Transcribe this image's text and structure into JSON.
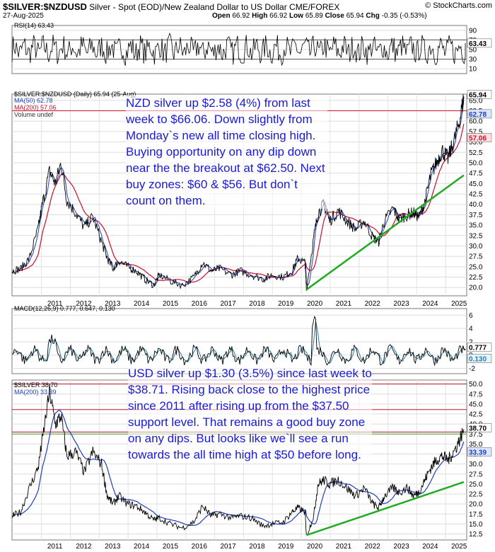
{
  "header": {
    "symbol": "$SILVER:$NZDUSD",
    "description": "Silver - Spot (EOD)/New Zealand Dollar to US Dollar CME/FOREX",
    "date": "27-Aug-2025",
    "ohlc": "Open 66.92  High 66.92  Low 65.89  Close 65.94  Chg -0.35 (-0.53%)",
    "open_label": "Open",
    "open": "66.92",
    "high_label": "High",
    "high": "66.92",
    "low_label": "Low",
    "low": "65.89",
    "close_label": "Close",
    "close": "65.94",
    "chg_label": "Chg",
    "chg": "-0.35 (-0.53%)",
    "credit": "© StockCharts.com"
  },
  "annotations": {
    "nzd": "NZD silver up $2.58 (4%) from last week to $66.06. Down slightly from Monday`s new all time closing high. Buying opportunity on any dip down near the the breakout at $62.50. Next buy zones: $60 & $56. But don`t count on them.",
    "usd": "USD silver up $1.30 (3.5%) since last week to $38.71. Rising back close to the highest price since 2011 after rising up from the $37.50 support level. That remains a good buy zone on any dips. But looks like we`ll see a run towards the all time high at $50 before long."
  },
  "chart_data": [
    {
      "type": "line",
      "panel": "RSI",
      "title": "RSI(14) 63.43",
      "current": 63.43,
      "yticks": [
        90,
        70,
        50,
        30,
        10
      ],
      "ylim": [
        0,
        100
      ],
      "reference_lines": [
        70,
        30
      ]
    },
    {
      "type": "line",
      "panel": "price-nzd",
      "title": "$SILVER:$NZDUSD (Daily) 65.94 (25-Aug)",
      "legend": [
        "MA(50) 62.78",
        "MA(200) 57.06",
        "Volume undef"
      ],
      "colors": {
        "price": "#000000",
        "ma50": "#1f3fbf",
        "ma200": "#c8102e",
        "trend": "#22aa22"
      },
      "x": [
        2010.0,
        2010.3,
        2010.6,
        2010.9,
        2011.05,
        2011.3,
        2011.5,
        2011.7,
        2011.9,
        2012.2,
        2012.5,
        2012.8,
        2013.1,
        2013.3,
        2013.5,
        2013.7,
        2014.0,
        2014.3,
        2014.6,
        2014.9,
        2015.1,
        2015.5,
        2015.9,
        2016.3,
        2016.6,
        2016.9,
        2017.2,
        2017.6,
        2017.9,
        2018.3,
        2018.7,
        2019.0,
        2019.4,
        2019.7,
        2019.9,
        2020.15,
        2020.2,
        2020.45,
        2020.6,
        2020.8,
        2021.0,
        2021.3,
        2021.6,
        2021.9,
        2022.2,
        2022.5,
        2022.7,
        2022.9,
        2023.2,
        2023.4,
        2023.7,
        2023.9,
        2024.1,
        2024.3,
        2024.5,
        2024.7,
        2024.9,
        2025.1,
        2025.3,
        2025.5,
        2025.65
      ],
      "values": [
        24,
        24.5,
        27,
        34,
        40,
        48,
        45,
        50,
        41,
        38,
        34.5,
        37,
        31,
        27,
        24.5,
        26.5,
        25,
        24,
        22,
        20.5,
        23,
        21.5,
        20.5,
        22.5,
        26,
        24,
        24.5,
        23,
        24,
        23,
        22,
        23,
        22.5,
        24,
        27,
        26,
        19.5,
        32,
        38,
        40,
        36,
        38.5,
        36,
        34,
        36,
        32,
        31,
        36,
        39,
        36.5,
        37.5,
        38,
        37,
        40.5,
        47,
        50,
        53,
        51,
        55,
        60,
        65.94
      ],
      "trendline": {
        "from": [
          2020.2,
          19.5
        ],
        "to": [
          2025.65,
          47
        ]
      },
      "horizontal_lines": [
        62.5
      ],
      "yticks": [
        65.0,
        62.5,
        60.0,
        57.5,
        55.0,
        52.5,
        50.0,
        47.5,
        45.0,
        42.5,
        40.0,
        37.5,
        35.0,
        32.5,
        30.0,
        27.5,
        25.0,
        22.5,
        20.0
      ],
      "right_tags": [
        {
          "text": "65.94",
          "value": 65.94
        },
        {
          "text": "62.78",
          "value": 62.78
        },
        {
          "text": "57.06",
          "value": 57.06
        }
      ],
      "ylim": [
        18,
        66.5
      ],
      "xticks": [
        "2011",
        "2012",
        "2013",
        "2014",
        "2015",
        "2016",
        "2017",
        "2018",
        "2019",
        "2020",
        "2021",
        "2022",
        "2023",
        "2024",
        "2025"
      ]
    },
    {
      "type": "line",
      "panel": "MACD",
      "title": "MACD(12,26,9) 0.777, 0.647, 0.130",
      "macd": 0.777,
      "signal": 0.647,
      "histogram": 0.13,
      "yticks": [
        6,
        4,
        2,
        0,
        -2
      ],
      "right_tags": [
        {
          "text": "0.777",
          "value": 0.777
        },
        {
          "text": "0.130",
          "value": 0.13
        }
      ],
      "ylim": [
        -2.8,
        7
      ]
    },
    {
      "type": "line",
      "panel": "price-usd",
      "title": "$SILVER 38.70",
      "legend": [
        "$SILVER 38.70",
        "MA(200) 33.39"
      ],
      "colors": {
        "price": "#000000",
        "ma200": "#1f3fbf",
        "trend": "#22aa22",
        "green_line": "#22aa22",
        "red_lines": "#c8102e"
      },
      "x": [
        2010.0,
        2010.3,
        2010.6,
        2010.9,
        2011.05,
        2011.3,
        2011.5,
        2011.7,
        2011.9,
        2012.2,
        2012.5,
        2012.8,
        2013.1,
        2013.3,
        2013.5,
        2013.7,
        2014.0,
        2014.3,
        2014.6,
        2014.9,
        2015.1,
        2015.5,
        2015.9,
        2016.3,
        2016.6,
        2016.9,
        2017.2,
        2017.6,
        2017.9,
        2018.3,
        2018.7,
        2019.0,
        2019.4,
        2019.7,
        2019.9,
        2020.15,
        2020.2,
        2020.45,
        2020.6,
        2020.8,
        2021.0,
        2021.3,
        2021.6,
        2021.9,
        2022.2,
        2022.5,
        2022.7,
        2022.9,
        2023.2,
        2023.4,
        2023.7,
        2023.9,
        2024.1,
        2024.3,
        2024.5,
        2024.7,
        2024.9,
        2025.1,
        2025.3,
        2025.5,
        2025.65
      ],
      "values": [
        17,
        18,
        24,
        29,
        36,
        48,
        40,
        42,
        32,
        33,
        28,
        33,
        30,
        22,
        20,
        22,
        20,
        19.5,
        18,
        16,
        16.5,
        15,
        14,
        15.5,
        19.5,
        17,
        17.5,
        16.5,
        17,
        16.5,
        14.5,
        15,
        15.5,
        18,
        19,
        18,
        12,
        17,
        25,
        26,
        25,
        26,
        24,
        22,
        24,
        20,
        19,
        22,
        24,
        23,
        24,
        22,
        23,
        26,
        29,
        31,
        32,
        31,
        33,
        36,
        38.7
      ],
      "trendline": {
        "from": [
          2020.2,
          12.2
        ],
        "to": [
          2025.65,
          25.5
        ]
      },
      "horizontal_lines_red": [
        50.0,
        43.6
      ],
      "horizontal_lines_green": [
        37.5
      ],
      "yticks": [
        50.0,
        47.5,
        45.0,
        42.5,
        40.0,
        37.5,
        35.0,
        32.5,
        30.0,
        27.5,
        25.0,
        22.5,
        20.0,
        17.5,
        15.0,
        12.5
      ],
      "right_tags": [
        {
          "text": "38.70",
          "value": 38.7
        },
        {
          "text": "33.39",
          "value": 33.39
        }
      ],
      "ylim": [
        11,
        51
      ],
      "xticks": [
        "2011",
        "2012",
        "2013",
        "2014",
        "2015",
        "2016",
        "2017",
        "2018",
        "2019",
        "2020",
        "2021",
        "2022",
        "2023",
        "2024",
        "2025"
      ]
    }
  ]
}
